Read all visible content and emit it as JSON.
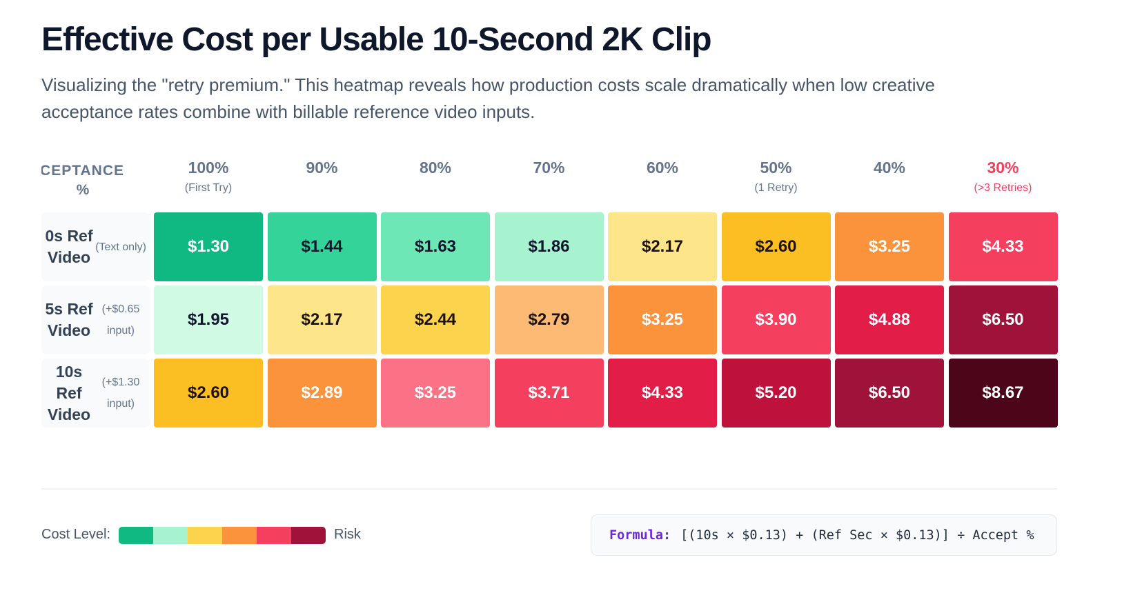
{
  "title": "Effective Cost per Usable 10-Second 2K Clip",
  "subtitle": "Visualizing the \"retry premium.\" This heatmap reveals how production costs scale dramatically when low creative acceptance rates combine with billable reference video inputs.",
  "corner_label": {
    "line1": "ACCEPTANCE",
    "line2": "%"
  },
  "columns": [
    {
      "label": "100%",
      "note": "(First Try)",
      "highlight": false
    },
    {
      "label": "90%",
      "note": "",
      "highlight": false
    },
    {
      "label": "80%",
      "note": "",
      "highlight": false
    },
    {
      "label": "70%",
      "note": "",
      "highlight": false
    },
    {
      "label": "60%",
      "note": "",
      "highlight": false
    },
    {
      "label": "50%",
      "note": "(1 Retry)",
      "highlight": false
    },
    {
      "label": "40%",
      "note": "",
      "highlight": false
    },
    {
      "label": "30%",
      "note": "(>3 Retries)",
      "highlight": true
    }
  ],
  "rows": [
    {
      "label": "0s Ref Video",
      "note": "(Text only)"
    },
    {
      "label": "5s Ref Video",
      "note": "(+$0.65 input)"
    },
    {
      "label": "10s Ref Video",
      "note": "(+$1.30 input)"
    }
  ],
  "chart_data": {
    "type": "heatmap",
    "title": "Effective Cost per Usable 10-Second 2K Clip",
    "x_categories": [
      "100%",
      "90%",
      "80%",
      "70%",
      "60%",
      "50%",
      "40%",
      "30%"
    ],
    "y_categories": [
      "0s Ref Video",
      "5s Ref Video",
      "10s Ref Video"
    ],
    "values": [
      [
        1.3,
        1.44,
        1.63,
        1.86,
        2.17,
        2.6,
        3.25,
        4.33
      ],
      [
        1.95,
        2.17,
        2.44,
        2.79,
        3.25,
        3.9,
        4.88,
        6.5
      ],
      [
        2.6,
        2.89,
        3.25,
        3.71,
        4.33,
        5.2,
        6.5,
        8.67
      ]
    ],
    "display_values": [
      [
        "$1.30",
        "$1.44",
        "$1.63",
        "$1.86",
        "$2.17",
        "$2.60",
        "$3.25",
        "$4.33"
      ],
      [
        "$1.95",
        "$2.17",
        "$2.44",
        "$2.79",
        "$3.25",
        "$3.90",
        "$4.88",
        "$6.50"
      ],
      [
        "$2.60",
        "$2.89",
        "$3.25",
        "$3.71",
        "$4.33",
        "$5.20",
        "$6.50",
        "$8.67"
      ]
    ],
    "cell_colors": [
      [
        "#10b981",
        "#34d399",
        "#6ee7b7",
        "#a7f3d0",
        "#fde68a",
        "#fbbf24",
        "#fb923c",
        "#f43f5e"
      ],
      [
        "#d1fae5",
        "#fde68a",
        "#fcd34d",
        "#fdba74",
        "#fb923c",
        "#f43f5e",
        "#e11d48",
        "#9f1239"
      ],
      [
        "#fbbf24",
        "#fb923c",
        "#fb7185",
        "#f43f5e",
        "#e11d48",
        "#be123c",
        "#9f1239",
        "#4c0519"
      ]
    ],
    "text_colors": [
      [
        "#ffffff",
        "#0f172a",
        "#0f172a",
        "#0f172a",
        "#1f1307",
        "#1f1307",
        "#ffffff",
        "#ffffff"
      ],
      [
        "#0f172a",
        "#1f1307",
        "#1f1307",
        "#1f1307",
        "#ffffff",
        "#ffffff",
        "#ffffff",
        "#ffffff"
      ],
      [
        "#1f1307",
        "#ffffff",
        "#ffffff",
        "#ffffff",
        "#ffffff",
        "#ffffff",
        "#ffffff",
        "#ffffff"
      ]
    ]
  },
  "legend": {
    "label": "Cost Level:",
    "end_label": "Risk",
    "colors": [
      "#10b981",
      "#a7f3d0",
      "#fcd34d",
      "#fb923c",
      "#f43f5e",
      "#9f1239"
    ]
  },
  "formula": {
    "label": "Formula:",
    "text": "[(10s × $0.13) + (Ref Sec × $0.13)] ÷ Accept %"
  }
}
